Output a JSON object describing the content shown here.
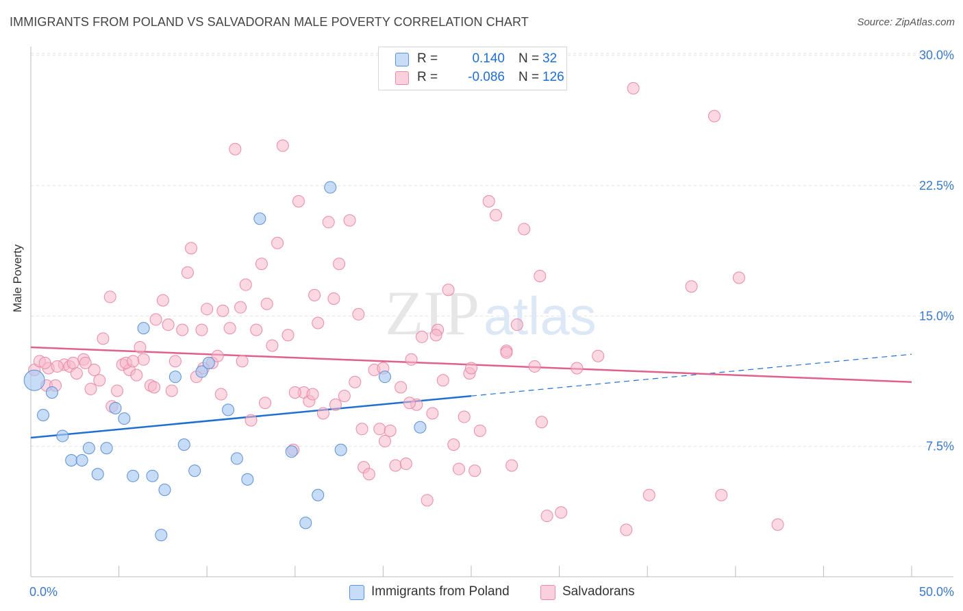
{
  "header": {
    "title": "IMMIGRANTS FROM POLAND VS SALVADORAN MALE POVERTY CORRELATION CHART",
    "source": "Source: ZipAtlas.com"
  },
  "watermark": {
    "zip": "ZIP",
    "atlas": "atlas"
  },
  "legend": {
    "rows": [
      {
        "r_label": "R =",
        "r_value": "0.140",
        "n_label": "N =",
        "n_value": "32",
        "color": "#a9c9f2"
      },
      {
        "r_label": "R =",
        "r_value": "-0.086",
        "n_label": "N =",
        "n_value": "126",
        "color": "#f7b8cb"
      }
    ]
  },
  "bottom_legend": [
    {
      "label": "Immigrants from Poland",
      "color": "#a9c9f2"
    },
    {
      "label": "Salvadorans",
      "color": "#f7b8cb"
    }
  ],
  "chart_data": {
    "type": "scatter",
    "title": "IMMIGRANTS FROM POLAND VS SALVADORAN MALE POVERTY CORRELATION CHART",
    "xlabel": "",
    "ylabel": "Male Poverty",
    "xlim": [
      0,
      50
    ],
    "ylim": [
      0,
      30.5
    ],
    "x_tick_labels": [
      "0.0%",
      "50.0%"
    ],
    "y_ticks": [
      7.5,
      15.0,
      22.5,
      30.0
    ],
    "y_tick_labels": [
      "7.5%",
      "15.0%",
      "22.5%",
      "30.0%"
    ],
    "grid": true,
    "legend_position": "top-center",
    "colors": {
      "blue_fill": "#a9c9f2",
      "blue_stroke": "#5b8fd6",
      "blue_line": "#1f6fd0",
      "pink_fill": "#f7b8cb",
      "pink_stroke": "#e98aa8",
      "pink_line": "#e0608a",
      "tick_label": "#3a78c9",
      "grid": "#e2e2e2"
    },
    "series": [
      {
        "name": "Immigrants from Poland",
        "color": "#a9c9f2",
        "points": [
          [
            0.2,
            11.3
          ],
          [
            0.7,
            9.3
          ],
          [
            1.2,
            10.6
          ],
          [
            1.8,
            8.1
          ],
          [
            2.3,
            6.7
          ],
          [
            2.9,
            6.7
          ],
          [
            3.3,
            7.4
          ],
          [
            3.8,
            5.9
          ],
          [
            4.3,
            7.4
          ],
          [
            4.8,
            9.7
          ],
          [
            5.3,
            9.1
          ],
          [
            5.8,
            5.8
          ],
          [
            6.4,
            14.3
          ],
          [
            6.9,
            5.8
          ],
          [
            7.6,
            5.0
          ],
          [
            8.2,
            11.5
          ],
          [
            8.7,
            7.6
          ],
          [
            9.3,
            6.1
          ],
          [
            9.7,
            11.8
          ],
          [
            10.1,
            12.3
          ],
          [
            11.2,
            9.6
          ],
          [
            11.7,
            6.8
          ],
          [
            12.3,
            5.6
          ],
          [
            13.0,
            20.6
          ],
          [
            14.8,
            7.2
          ],
          [
            15.6,
            3.1
          ],
          [
            16.3,
            4.7
          ],
          [
            17.0,
            22.4
          ],
          [
            17.6,
            7.3
          ],
          [
            20.1,
            11.5
          ],
          [
            22.1,
            8.6
          ],
          [
            7.4,
            2.4
          ]
        ],
        "trend": {
          "x0": 0,
          "y0": 8.0,
          "x1": 25.0,
          "y1": 10.4,
          "dash_to_x": 50,
          "dash_to_y": 12.8
        }
      },
      {
        "name": "Salvadorans",
        "color": "#f7b8cb",
        "points": [
          [
            0.2,
            11.9
          ],
          [
            0.5,
            12.4
          ],
          [
            0.9,
            11.0
          ],
          [
            1.4,
            11.0
          ],
          [
            1.9,
            12.2
          ],
          [
            2.2,
            12.1
          ],
          [
            2.6,
            11.7
          ],
          [
            3.0,
            12.5
          ],
          [
            3.4,
            10.8
          ],
          [
            3.9,
            11.3
          ],
          [
            4.1,
            13.7
          ],
          [
            4.5,
            16.1
          ],
          [
            4.9,
            10.7
          ],
          [
            5.2,
            12.2
          ],
          [
            5.6,
            11.9
          ],
          [
            6.0,
            11.6
          ],
          [
            6.4,
            12.5
          ],
          [
            6.8,
            11.0
          ],
          [
            7.1,
            14.8
          ],
          [
            7.5,
            15.9
          ],
          [
            7.8,
            14.5
          ],
          [
            8.2,
            12.4
          ],
          [
            8.6,
            14.2
          ],
          [
            8.9,
            17.5
          ],
          [
            9.1,
            18.9
          ],
          [
            9.4,
            11.5
          ],
          [
            9.7,
            14.2
          ],
          [
            10.0,
            15.4
          ],
          [
            10.3,
            12.3
          ],
          [
            10.6,
            12.7
          ],
          [
            10.9,
            15.3
          ],
          [
            11.3,
            14.3
          ],
          [
            11.6,
            24.6
          ],
          [
            11.9,
            15.5
          ],
          [
            12.2,
            16.8
          ],
          [
            12.5,
            9.0
          ],
          [
            12.8,
            14.2
          ],
          [
            13.1,
            18.0
          ],
          [
            13.4,
            15.7
          ],
          [
            13.7,
            13.3
          ],
          [
            14.0,
            19.2
          ],
          [
            14.3,
            24.8
          ],
          [
            14.6,
            13.9
          ],
          [
            14.9,
            7.3
          ],
          [
            15.2,
            21.6
          ],
          [
            15.5,
            10.6
          ],
          [
            15.8,
            10.1
          ],
          [
            16.1,
            16.2
          ],
          [
            16.3,
            14.6
          ],
          [
            16.6,
            9.4
          ],
          [
            16.9,
            20.4
          ],
          [
            17.2,
            16.0
          ],
          [
            17.5,
            18.0
          ],
          [
            17.8,
            10.4
          ],
          [
            18.1,
            20.5
          ],
          [
            18.4,
            11.2
          ],
          [
            18.6,
            15.1
          ],
          [
            18.9,
            6.3
          ],
          [
            19.2,
            5.9
          ],
          [
            19.5,
            11.9
          ],
          [
            19.8,
            8.5
          ],
          [
            20.1,
            7.8
          ],
          [
            20.4,
            8.4
          ],
          [
            20.7,
            6.4
          ],
          [
            21.0,
            10.9
          ],
          [
            21.3,
            6.5
          ],
          [
            21.6,
            12.5
          ],
          [
            21.9,
            9.9
          ],
          [
            22.2,
            13.8
          ],
          [
            22.5,
            4.4
          ],
          [
            22.8,
            9.4
          ],
          [
            23.1,
            14.2
          ],
          [
            23.4,
            11.3
          ],
          [
            23.7,
            16.5
          ],
          [
            24.0,
            7.6
          ],
          [
            24.3,
            6.2
          ],
          [
            24.6,
            9.2
          ],
          [
            24.9,
            11.7
          ],
          [
            25.2,
            6.1
          ],
          [
            25.5,
            8.4
          ],
          [
            26.0,
            21.6
          ],
          [
            26.4,
            20.8
          ],
          [
            27.0,
            13.0
          ],
          [
            27.3,
            6.4
          ],
          [
            27.6,
            14.5
          ],
          [
            28.0,
            20.0
          ],
          [
            28.6,
            12.1
          ],
          [
            28.9,
            17.3
          ],
          [
            29.3,
            3.5
          ],
          [
            30.1,
            3.7
          ],
          [
            31.0,
            12.0
          ],
          [
            32.2,
            12.7
          ],
          [
            33.8,
            2.7
          ],
          [
            34.2,
            28.1
          ],
          [
            35.1,
            4.7
          ],
          [
            37.5,
            16.7
          ],
          [
            38.8,
            26.5
          ],
          [
            39.2,
            4.7
          ],
          [
            40.2,
            17.2
          ],
          [
            42.4,
            3.0
          ],
          [
            1.0,
            12.0
          ],
          [
            2.4,
            12.3
          ],
          [
            3.6,
            11.9
          ],
          [
            4.6,
            9.8
          ],
          [
            5.4,
            12.3
          ],
          [
            6.2,
            13.2
          ],
          [
            7.0,
            10.9
          ],
          [
            8.0,
            10.7
          ],
          [
            9.8,
            12.0
          ],
          [
            10.8,
            10.5
          ],
          [
            12.0,
            12.4
          ],
          [
            13.3,
            10.0
          ],
          [
            15.0,
            10.6
          ],
          [
            16.0,
            10.5
          ],
          [
            17.3,
            9.9
          ],
          [
            18.8,
            8.5
          ],
          [
            20.0,
            12.0
          ],
          [
            21.5,
            10.0
          ],
          [
            23.0,
            13.9
          ],
          [
            25.0,
            12.0
          ],
          [
            27.0,
            12.9
          ],
          [
            29.0,
            8.9
          ],
          [
            1.5,
            12.1
          ],
          [
            0.8,
            12.3
          ],
          [
            3.1,
            12.3
          ],
          [
            5.8,
            12.4
          ]
        ],
        "trend": {
          "x0": 0,
          "y0": 13.2,
          "x1": 50,
          "y1": 11.2
        }
      }
    ]
  }
}
